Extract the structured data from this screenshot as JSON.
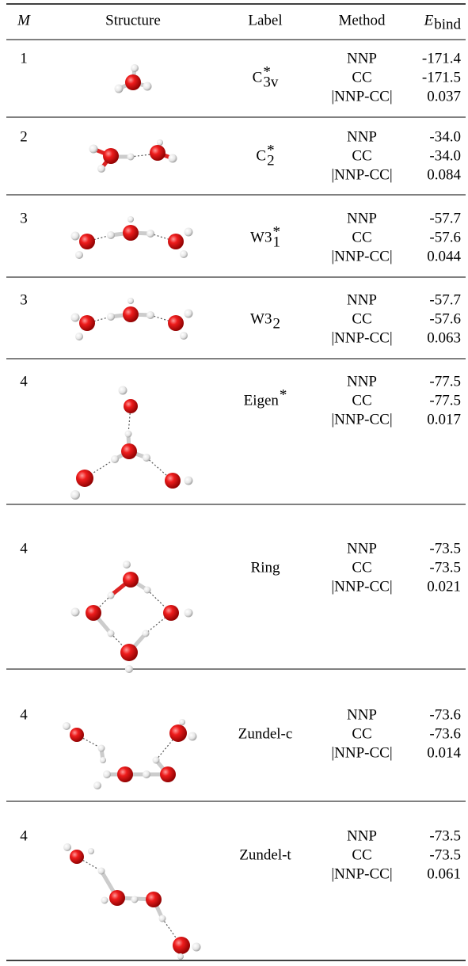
{
  "table": {
    "header": [
      {
        "main": "M"
      },
      {
        "main": "Structure"
      },
      {
        "main": "Label"
      },
      {
        "main": "Method"
      },
      {
        "main": "E",
        "sub": "bind"
      }
    ],
    "rows": [
      {
        "M": "1",
        "label": {
          "base": "C",
          "sup": "*",
          "sub": "3v"
        },
        "methods": [
          "NNP",
          "CC",
          "|NNP-CC|"
        ],
        "values": [
          "-171.4",
          "-171.5",
          "0.037"
        ]
      },
      {
        "M": "2",
        "label": {
          "base": "C",
          "sup": "*",
          "sub": "2"
        },
        "methods": [
          "NNP",
          "CC",
          "|NNP-CC|"
        ],
        "values": [
          "-34.0",
          "-34.0",
          "0.084"
        ]
      },
      {
        "M": "3",
        "label": {
          "base": "W3",
          "sup": "*",
          "sub": "1"
        },
        "methods": [
          "NNP",
          "CC",
          "|NNP-CC|"
        ],
        "values": [
          "-57.7",
          "-57.6",
          "0.044"
        ]
      },
      {
        "M": "3",
        "label": {
          "base": "W3",
          "sub": "2"
        },
        "methods": [
          "NNP",
          "CC",
          "|NNP-CC|"
        ],
        "values": [
          "-57.7",
          "-57.6",
          "0.063"
        ]
      },
      {
        "M": "4",
        "label": {
          "base": "Eigen",
          "sup": "*"
        },
        "methods": [
          "NNP",
          "CC",
          "|NNP-CC|"
        ],
        "values": [
          "-77.5",
          "-77.5",
          "0.017"
        ]
      },
      {
        "M": "4",
        "label": {
          "base": "Ring"
        },
        "methods": [
          "NNP",
          "CC",
          "|NNP-CC|"
        ],
        "values": [
          "-73.5",
          "-73.5",
          "0.021"
        ]
      },
      {
        "M": "4",
        "label": {
          "base": "Zundel-c"
        },
        "methods": [
          "NNP",
          "CC",
          "|NNP-CC|"
        ],
        "values": [
          "-73.6",
          "-73.6",
          "0.014"
        ]
      },
      {
        "M": "4",
        "label": {
          "base": "Zundel-t"
        },
        "methods": [
          "NNP",
          "CC",
          "|NNP-CC|"
        ],
        "values": [
          "-73.5",
          "-73.5",
          "0.061"
        ]
      }
    ]
  }
}
